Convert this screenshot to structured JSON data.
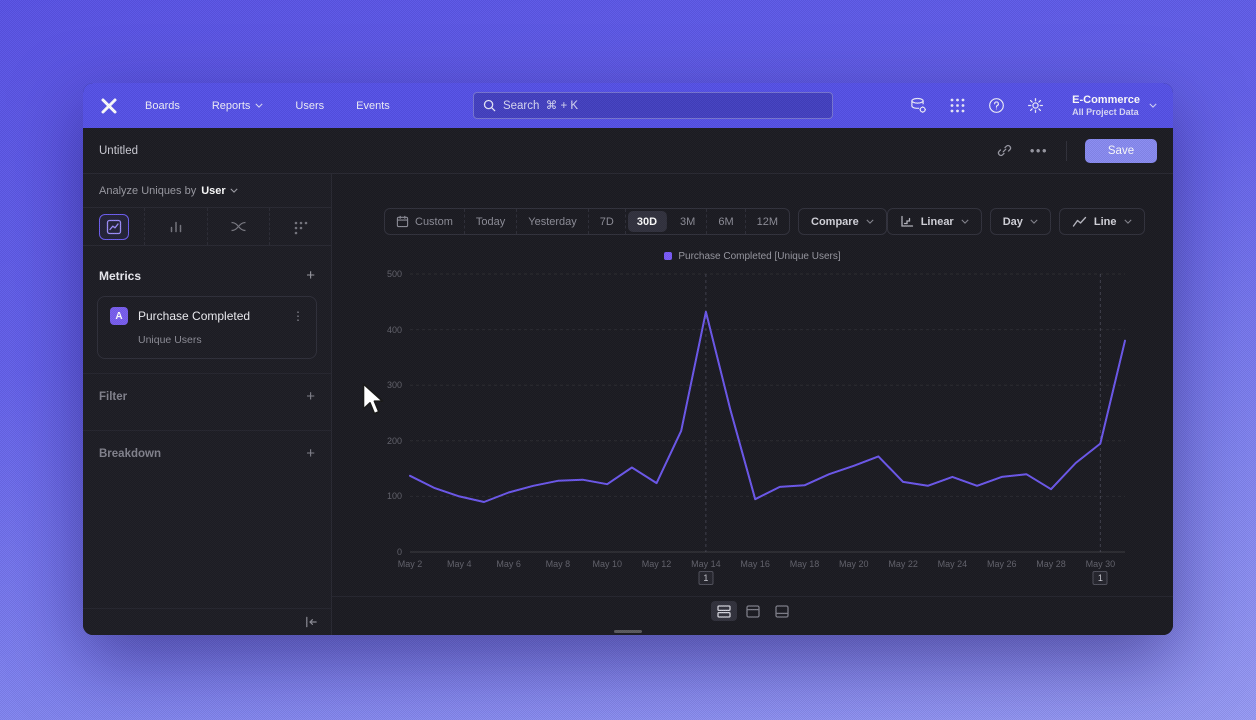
{
  "nav": {
    "items": [
      "Boards",
      "Reports",
      "Users",
      "Events"
    ],
    "search_placeholder": "Search  ⌘ + K",
    "project_name": "E-Commerce",
    "project_scope": "All Project Data"
  },
  "titlebar": {
    "title": "Untitled",
    "more": "•••",
    "save": "Save"
  },
  "sidebar": {
    "analyze_prefix": "Analyze Uniques by",
    "analyze_value": "User",
    "metrics_title": "Metrics",
    "metrics_add": "+",
    "metric_badge": "A",
    "metric_name": "Purchase Completed",
    "metric_subtitle": "Unique Users",
    "metric_menu": "⋮",
    "filter_title": "Filter",
    "filter_add": "+",
    "breakdown_title": "Breakdown",
    "breakdown_add": "+"
  },
  "toolbar": {
    "ranges": [
      "Custom",
      "Today",
      "Yesterday",
      "7D",
      "30D",
      "3M",
      "6M",
      "12M"
    ],
    "selected_range": "30D",
    "compare": "Compare",
    "scale": "Linear",
    "interval": "Day",
    "chart_type": "Line"
  },
  "chart_data": {
    "type": "line",
    "title": "",
    "legend": [
      "Purchase Completed [Unique Users]"
    ],
    "legend_position": "top-center",
    "x": [
      "May 2",
      "May 3",
      "May 4",
      "May 5",
      "May 6",
      "May 7",
      "May 8",
      "May 9",
      "May 10",
      "May 11",
      "May 12",
      "May 13",
      "May 14",
      "May 15",
      "May 16",
      "May 17",
      "May 18",
      "May 19",
      "May 20",
      "May 21",
      "May 22",
      "May 23",
      "May 24",
      "May 25",
      "May 26",
      "May 27",
      "May 28",
      "May 29",
      "May 30",
      "May 31"
    ],
    "xtick_every": 2,
    "series": [
      {
        "name": "Purchase Completed [Unique Users]",
        "color": "#6e59ee",
        "values": [
          137,
          115,
          100,
          90,
          107,
          119,
          128,
          130,
          122,
          152,
          124,
          218,
          432,
          255,
          95,
          117,
          120,
          140,
          155,
          172,
          126,
          119,
          135,
          119,
          135,
          140,
          113,
          160,
          195,
          380
        ]
      }
    ],
    "ylim": [
      0,
      500
    ],
    "yticks": [
      0,
      100,
      200,
      300,
      400,
      500
    ],
    "grid": "horizontal-dashed",
    "annotations": [
      {
        "label": "1",
        "x_index": 12
      },
      {
        "label": "1",
        "x_index": 28
      }
    ]
  },
  "colors": {
    "accent": "#6e59ee",
    "legend_swatch": "#7c5cfa",
    "nav": "#5753e8",
    "save_button": "#8a8cf2",
    "window_bg": "#1d1d23"
  }
}
